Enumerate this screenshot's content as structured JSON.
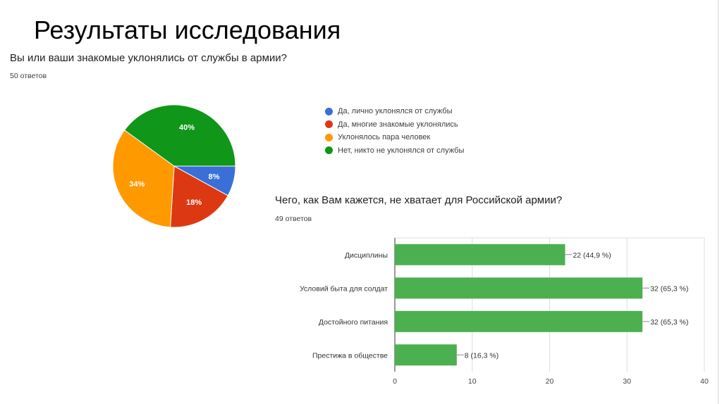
{
  "slide": {
    "title": "Результаты исследования"
  },
  "q1": {
    "title": "Вы или ваши знакомые уклонялись от службы в армии?",
    "responses": "50 ответов"
  },
  "q2": {
    "title": "Чего, как Вам кажется, не хватает для Российской армии?",
    "responses": "49 ответов"
  },
  "chart_data": [
    {
      "type": "pie",
      "title": "Вы или ваши знакомые уклонялись от службы в армии?",
      "slices": [
        {
          "label": "Да, лично уклонялся от службы",
          "value": 8,
          "text": "8%",
          "color": "#3a6fd8"
        },
        {
          "label": "Да, многие знакомые уклонялись",
          "value": 18,
          "text": "18%",
          "color": "#dc3912"
        },
        {
          "label": "Уклонялось пара человек",
          "value": 34,
          "text": "34%",
          "color": "#ff9900"
        },
        {
          "label": "Нет, никто не уклонялся от службы",
          "value": 40,
          "text": "40%",
          "color": "#109618"
        }
      ],
      "legend": "right"
    },
    {
      "type": "bar",
      "orientation": "horizontal",
      "title": "Чего, как Вам кажется, не хватает для Российской армии?",
      "categories": [
        "Дисциплины",
        "Условий быта для солдат",
        "Достойного питания",
        "Престижа в обществе"
      ],
      "values": [
        22,
        32,
        32,
        8
      ],
      "labels": [
        "22 (44,9 %)",
        "32 (65,3 %)",
        "32 (65,3 %)",
        "8 (16,3 %)"
      ],
      "xlim": [
        0,
        40
      ],
      "xticks": [
        "0",
        "10",
        "20",
        "30",
        "40"
      ],
      "grid": true,
      "color": "#4caf50"
    }
  ]
}
